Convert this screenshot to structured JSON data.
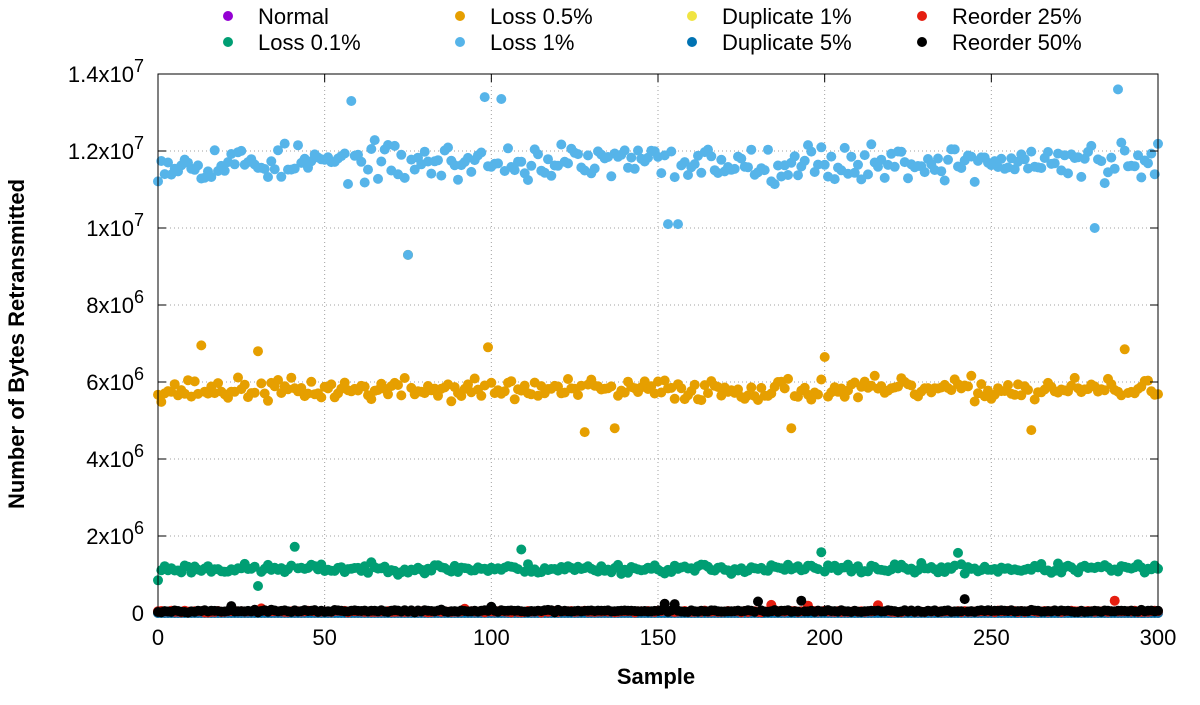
{
  "chart_data": {
    "type": "scatter",
    "title": "",
    "xlabel": "Sample",
    "ylabel": "Number of Bytes Retransmitted",
    "xlim": [
      0,
      300
    ],
    "ylim": [
      0,
      14000000
    ],
    "grid": true,
    "legend_position": "top",
    "x_ticks": [
      {
        "value": 0,
        "label": "0"
      },
      {
        "value": 50,
        "label": "50"
      },
      {
        "value": 100,
        "label": "100"
      },
      {
        "value": 150,
        "label": "150"
      },
      {
        "value": 200,
        "label": "200"
      },
      {
        "value": 250,
        "label": "250"
      },
      {
        "value": 300,
        "label": "300"
      }
    ],
    "y_ticks": [
      {
        "value": 0,
        "base": "0",
        "exp": ""
      },
      {
        "value": 2000000,
        "base": "2x10",
        "exp": "6"
      },
      {
        "value": 4000000,
        "base": "4x10",
        "exp": "6"
      },
      {
        "value": 6000000,
        "base": "6x10",
        "exp": "6"
      },
      {
        "value": 8000000,
        "base": "8x10",
        "exp": "6"
      },
      {
        "value": 10000000,
        "base": "1x10",
        "exp": "7"
      },
      {
        "value": 12000000,
        "base": "1.2x10",
        "exp": "7"
      },
      {
        "value": 14000000,
        "base": "1.4x10",
        "exp": "7"
      }
    ],
    "series": [
      {
        "name": "Normal",
        "color": "#9400d3",
        "model": {
          "kind": "near-zero",
          "base": 0,
          "spread": 0,
          "seed": 11
        }
      },
      {
        "name": "Loss 0.1%",
        "color": "#009e73",
        "model": {
          "kind": "noise",
          "base": 1150000,
          "spread": 180000,
          "seed": 23,
          "outliers": [
            [
              41,
              1720000
            ],
            [
              109,
              1650000
            ],
            [
              199,
              1580000
            ],
            [
              240,
              1560000
            ],
            [
              30,
              700000
            ],
            [
              0,
              850000
            ]
          ]
        }
      },
      {
        "name": "Loss 0.5%",
        "color": "#e69f00",
        "model": {
          "kind": "noise",
          "base": 5800000,
          "spread": 420000,
          "seed": 37,
          "outliers": [
            [
              13,
              6950000
            ],
            [
              30,
              6800000
            ],
            [
              99,
              6900000
            ],
            [
              200,
              6650000
            ],
            [
              290,
              6850000
            ],
            [
              128,
              4700000
            ],
            [
              190,
              4800000
            ],
            [
              262,
              4750000
            ],
            [
              137,
              4800000
            ],
            [
              75,
              9300000
            ]
          ]
        }
      },
      {
        "name": "Loss 1%",
        "color": "#56b4e9",
        "model": {
          "kind": "noise",
          "base": 11700000,
          "spread": 700000,
          "seed": 53,
          "outliers": [
            [
              75,
              9300000
            ],
            [
              98,
              13400000
            ],
            [
              288,
              13600000
            ],
            [
              103,
              13350000
            ],
            [
              58,
              13300000
            ],
            [
              153,
              10100000
            ],
            [
              156,
              10100000
            ],
            [
              281,
              10000000
            ]
          ]
        }
      },
      {
        "name": "Duplicate 1%",
        "color": "#f0e442",
        "model": {
          "kind": "near-zero",
          "base": 0,
          "spread": 0,
          "seed": 61
        }
      },
      {
        "name": "Duplicate 5%",
        "color": "#0072b2",
        "model": {
          "kind": "near-zero",
          "base": 0,
          "spread": 0,
          "seed": 71
        }
      },
      {
        "name": "Reorder 25%",
        "color": "#e51e10",
        "model": {
          "kind": "near-zero",
          "base": 40000,
          "spread": 30000,
          "seed": 83,
          "outliers": [
            [
              287,
              320000
            ],
            [
              184,
              210000
            ],
            [
              216,
              200000
            ],
            [
              195,
              190000
            ],
            [
              31,
              120000
            ],
            [
              92,
              110000
            ]
          ]
        }
      },
      {
        "name": "Reorder 50%",
        "color": "#000000",
        "model": {
          "kind": "near-zero",
          "base": 50000,
          "spread": 40000,
          "seed": 97,
          "outliers": [
            [
              242,
              360000
            ],
            [
              193,
              320000
            ],
            [
              180,
              300000
            ],
            [
              152,
              240000
            ],
            [
              155,
              230000
            ],
            [
              22,
              180000
            ],
            [
              100,
              160000
            ]
          ]
        }
      }
    ],
    "points_per_series": 301
  }
}
